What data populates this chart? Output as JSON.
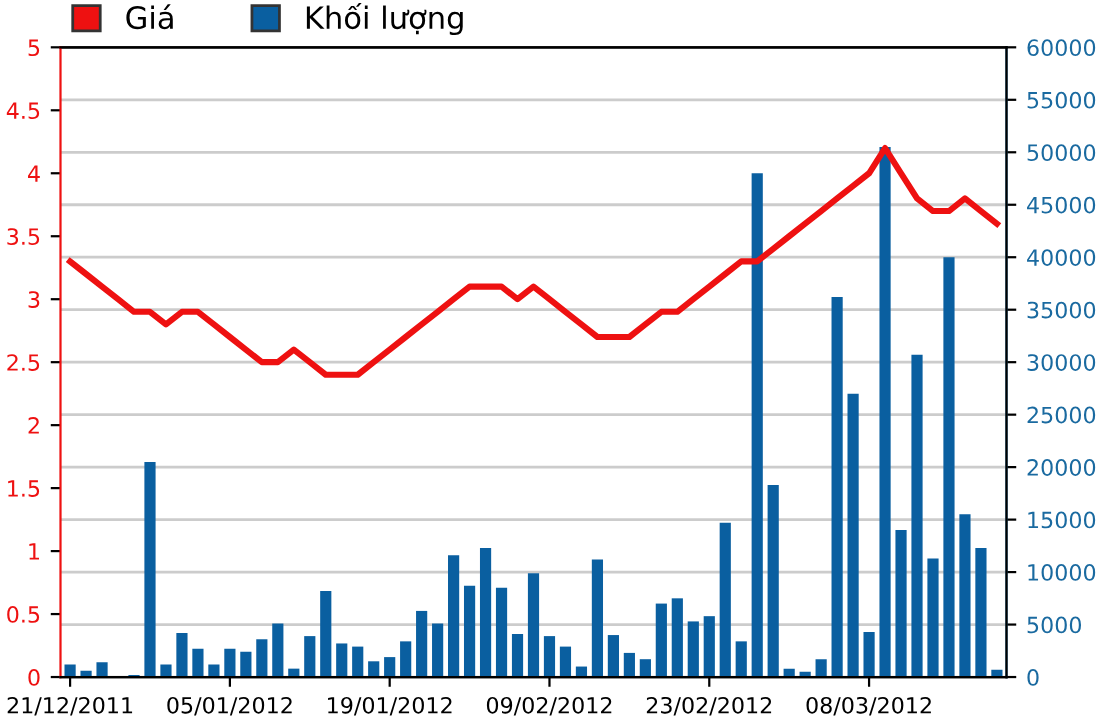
{
  "chart_data": {
    "type": "bar",
    "categories": [
      "21/12/2011",
      null,
      null,
      null,
      null,
      null,
      null,
      null,
      null,
      null,
      "05/01/2012",
      null,
      null,
      null,
      null,
      null,
      null,
      null,
      null,
      null,
      "19/01/2012",
      null,
      null,
      null,
      null,
      null,
      null,
      null,
      null,
      null,
      "09/02/2012",
      null,
      null,
      null,
      null,
      null,
      null,
      null,
      null,
      null,
      "23/02/2012",
      null,
      null,
      null,
      null,
      null,
      null,
      null,
      null,
      null,
      "08/03/2012",
      null,
      null,
      null,
      null,
      null,
      null,
      null,
      null
    ],
    "series": [
      {
        "name": "Giá",
        "type": "line",
        "color": "#ee1111",
        "axis": "y",
        "values": [
          3.3,
          3.2,
          3.1,
          3.0,
          2.9,
          2.9,
          2.8,
          2.9,
          2.9,
          2.8,
          2.7,
          2.6,
          2.5,
          2.5,
          2.6,
          2.5,
          2.4,
          2.4,
          2.4,
          2.5,
          2.6,
          2.7,
          2.8,
          2.9,
          3.0,
          3.1,
          3.1,
          3.1,
          3.0,
          3.1,
          3.0,
          2.9,
          2.8,
          2.7,
          2.7,
          2.7,
          2.8,
          2.9,
          2.9,
          3.0,
          3.1,
          3.2,
          3.3,
          3.3,
          3.4,
          3.5,
          3.6,
          3.7,
          3.8,
          3.9,
          4.0,
          4.2,
          4.0,
          3.8,
          3.7,
          3.7,
          3.8,
          3.7,
          3.6
        ]
      },
      {
        "name": "Khối lượng",
        "color": "#0a5fa0",
        "axis": "y2",
        "values": [
          1200,
          600,
          1400,
          0,
          200,
          20500,
          1200,
          4200,
          2700,
          1200,
          2700,
          2400,
          3600,
          5100,
          800,
          3900,
          8200,
          3200,
          2900,
          1500,
          1900,
          3400,
          6300,
          5100,
          11600,
          8700,
          12300,
          8500,
          4100,
          9900,
          3900,
          2900,
          1000,
          11200,
          4000,
          2300,
          1700,
          7000,
          7500,
          5300,
          5800,
          14700,
          3400,
          48000,
          18300,
          800,
          500,
          1700,
          36200,
          27000,
          4300,
          50500,
          14000,
          30700,
          11300,
          40000,
          15500,
          12300,
          700
        ]
      }
    ],
    "ylim": [
      0,
      5
    ],
    "yticks": [
      0,
      0.5,
      1,
      1.5,
      2,
      2.5,
      3,
      3.5,
      4,
      4.5,
      5
    ],
    "y2lim": [
      0,
      60000
    ],
    "y2ticks": [
      0,
      5000,
      10000,
      15000,
      20000,
      25000,
      30000,
      35000,
      40000,
      45000,
      50000,
      55000,
      60000
    ],
    "grid": "y",
    "legend": "top left",
    "marker": "none",
    "line_style": "solid"
  }
}
